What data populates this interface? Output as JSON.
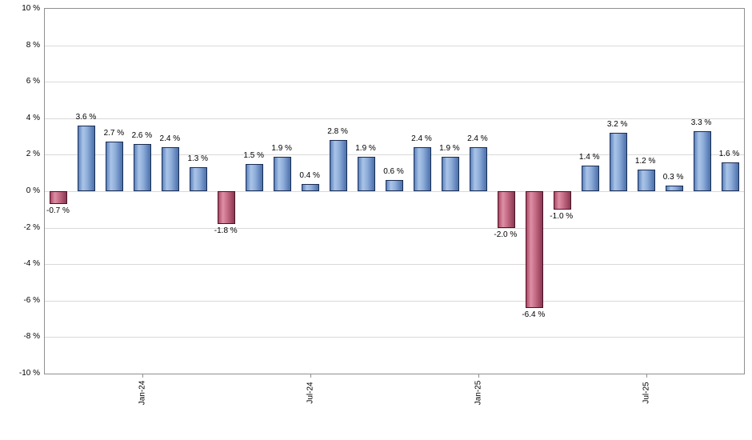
{
  "chart_data": {
    "type": "bar",
    "title": "",
    "xlabel": "",
    "ylabel": "",
    "ylim": [
      -10,
      10
    ],
    "y_tick_step": 2,
    "grid": true,
    "legend": "none",
    "y_ticks": [
      "10 %",
      "8 %",
      "6 %",
      "4 %",
      "2 %",
      "0 %",
      "-2 %",
      "-4 %",
      "-6 %",
      "-8 %",
      "-10 %"
    ],
    "values": [
      -0.7,
      3.6,
      2.7,
      2.6,
      2.4,
      1.3,
      -1.8,
      1.5,
      1.9,
      0.4,
      2.8,
      1.9,
      0.6,
      2.4,
      1.9,
      2.4,
      -2.0,
      -6.4,
      -1.0,
      1.4,
      3.2,
      1.2,
      0.3,
      3.3,
      1.6
    ],
    "bar_labels": [
      "-0.7 %",
      "3.6 %",
      "2.7 %",
      "2.6 %",
      "2.4 %",
      "1.3 %",
      "-1.8 %",
      "1.5 %",
      "1.9 %",
      "0.4 %",
      "2.8 %",
      "1.9 %",
      "0.6 %",
      "2.4 %",
      "1.9 %",
      "2.4 %",
      "-2.0 %",
      "-6.4 %",
      "-1.0 %",
      "1.4 %",
      "3.2 %",
      "1.2 %",
      "0.3 %",
      "3.3 %",
      "1.6 %"
    ],
    "x_ticks": [
      {
        "label": "Jan-24",
        "bar_index": 3
      },
      {
        "label": "Jul-24",
        "bar_index": 9
      },
      {
        "label": "Jan-25",
        "bar_index": 15
      },
      {
        "label": "Jul-25",
        "bar_index": 21
      }
    ],
    "colors": {
      "positive_fill_light": "#aac4e7",
      "positive_fill_dark": "#4970ad",
      "positive_border": "#1b2c4f",
      "negative_fill_light": "#dc90a6",
      "negative_fill_dark": "#8c3850",
      "negative_border": "#44142a",
      "gridline": "#d9d9d9",
      "plot_border": "#8f8f8f",
      "background": "#ffffff",
      "label_text": "#000000"
    }
  }
}
